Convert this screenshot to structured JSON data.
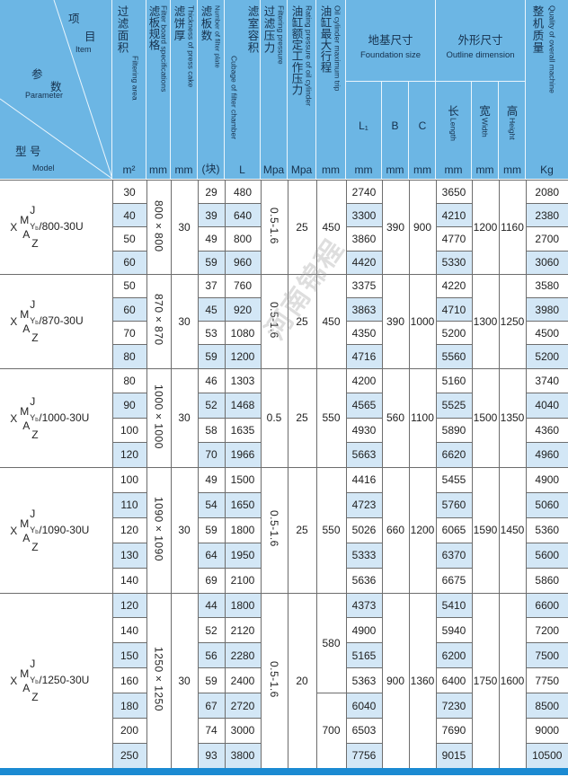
{
  "header": {
    "corner": {
      "item_zh": "项",
      "item_zh2": "目",
      "item_en": "Item",
      "param_zh": "参",
      "param_zh2": "数",
      "param_en": "Parameter",
      "model_zh": "型 号",
      "model_en": "Model"
    },
    "filter_area": {
      "zh": "过滤面积",
      "en": "Filtering area",
      "unit": "m²"
    },
    "board_spec": {
      "zh": "滤板规格",
      "en": "Filter board specifications",
      "unit": "mm"
    },
    "cake_thickness": {
      "zh": "滤饼厚",
      "en": "Thickness of press cake",
      "unit": "mm"
    },
    "plate_count": {
      "zh": "滤板数",
      "en": "Number of filter plate",
      "unit": "(块)"
    },
    "chamber_volume": {
      "zh": "滤室容积",
      "en": "Cubage of filter chamber",
      "unit": "L"
    },
    "filter_pressure": {
      "zh": "过滤压力",
      "en": "Filtering pressure",
      "unit": "Mpa"
    },
    "rated_pressure": {
      "zh": "油缸额定工作压力",
      "en": "Rating pressure of oil cylinder",
      "unit": "Mpa"
    },
    "max_trip": {
      "zh": "油缸最大行程",
      "en": "Oil cylinder maximum trip",
      "unit": "mm"
    },
    "foundation": {
      "zh": "地基尺寸",
      "en": "Foundation size",
      "l1": "L₁",
      "b": "B",
      "c": "C",
      "unit": "mm"
    },
    "outline": {
      "zh": "外形尺寸",
      "en": "Outline dimension",
      "length_zh": "长",
      "length_en": "Length",
      "width_zh": "宽",
      "width_en": "Width",
      "height_zh": "高",
      "height_en": "Height",
      "unit": "mm"
    },
    "weight": {
      "zh": "整机质量",
      "en": "Quality of overall machine",
      "unit": "Kg"
    }
  },
  "model_symbol": {
    "x": "X",
    "m": "M",
    "j": "J",
    "a": "A",
    "z": "Z",
    "y": "Y",
    "b": "b"
  },
  "groups": [
    {
      "suffix": "/800-30U",
      "board": "800×800",
      "thickness": "30",
      "pressure": "0.5-1.6",
      "rated": "25",
      "trip": [
        {
          "value": "450",
          "span": 4
        }
      ],
      "b": "390",
      "c": "900",
      "width": "1200",
      "height": "1160",
      "rows": [
        [
          "30",
          "29",
          "480",
          "2740",
          "3650",
          "2080"
        ],
        [
          "40",
          "39",
          "640",
          "3300",
          "4210",
          "2380"
        ],
        [
          "50",
          "49",
          "800",
          "3860",
          "4770",
          "2700"
        ],
        [
          "60",
          "59",
          "960",
          "4420",
          "5330",
          "3060"
        ]
      ]
    },
    {
      "suffix": "/870-30U",
      "board": "870×870",
      "thickness": "30",
      "pressure": "0.5-1.6",
      "rated": "25",
      "trip": [
        {
          "value": "450",
          "span": 4
        }
      ],
      "b": "390",
      "c": "1000",
      "width": "1300",
      "height": "1250",
      "rows": [
        [
          "50",
          "37",
          "760",
          "3375",
          "4220",
          "3580"
        ],
        [
          "60",
          "45",
          "920",
          "3863",
          "4710",
          "3980"
        ],
        [
          "70",
          "53",
          "1080",
          "4350",
          "5200",
          "4500"
        ],
        [
          "80",
          "59",
          "1200",
          "4716",
          "5560",
          "5200"
        ]
      ]
    },
    {
      "suffix": "/1000-30U",
      "board": "1000×1000",
      "thickness": "30",
      "pressure": "0.5",
      "rated": "25",
      "trip": [
        {
          "value": "550",
          "span": 4
        }
      ],
      "b": "560",
      "c": "1100",
      "width": "1500",
      "height": "1350",
      "rows": [
        [
          "80",
          "46",
          "1303",
          "4200",
          "5160",
          "3740"
        ],
        [
          "90",
          "52",
          "1468",
          "4565",
          "5525",
          "4040"
        ],
        [
          "100",
          "58",
          "1635",
          "4930",
          "5890",
          "4360"
        ],
        [
          "120",
          "70",
          "1966",
          "5663",
          "6620",
          "4960"
        ]
      ]
    },
    {
      "suffix": "/1090-30U",
      "board": "1090×1090",
      "thickness": "30",
      "pressure": "0.5-1.6",
      "rated": "25",
      "trip": [
        {
          "value": "550",
          "span": 5
        }
      ],
      "b": "660",
      "c": "1200",
      "width": "1590",
      "height": "1450",
      "rows": [
        [
          "100",
          "49",
          "1500",
          "4416",
          "5455",
          "4900"
        ],
        [
          "110",
          "54",
          "1650",
          "4723",
          "5760",
          "5060"
        ],
        [
          "120",
          "59",
          "1800",
          "5026",
          "6065",
          "5360"
        ],
        [
          "130",
          "64",
          "1950",
          "5333",
          "6370",
          "5600"
        ],
        [
          "140",
          "69",
          "2100",
          "5636",
          "6675",
          "5860"
        ]
      ]
    },
    {
      "suffix": "/1250-30U",
      "board": "1250×1250",
      "thickness": "30",
      "pressure": "0.5-1.6",
      "rated": "20",
      "trip": [
        {
          "value": "580",
          "span": 4
        },
        {
          "value": "700",
          "span": 3
        }
      ],
      "b": "900",
      "c": "1360",
      "width": "1750",
      "height": "1600",
      "rows": [
        [
          "120",
          "44",
          "1800",
          "4373",
          "5410",
          "6600"
        ],
        [
          "140",
          "52",
          "2120",
          "4900",
          "5940",
          "7200"
        ],
        [
          "150",
          "56",
          "2280",
          "5165",
          "6200",
          "7500"
        ],
        [
          "160",
          "59",
          "2400",
          "5363",
          "6400",
          "7750"
        ],
        [
          "180",
          "67",
          "2720",
          "6040",
          "7230",
          "8500"
        ],
        [
          "200",
          "74",
          "3000",
          "6503",
          "7690",
          "9000"
        ],
        [
          "250",
          "93",
          "3800",
          "7756",
          "9015",
          "10500"
        ]
      ]
    }
  ],
  "watermark": "河南锦程",
  "colors": {
    "header_bg": "#6cb6e4",
    "shaded_cell": "#d3e7f6",
    "bottom_bar": "#1b8ad2"
  }
}
